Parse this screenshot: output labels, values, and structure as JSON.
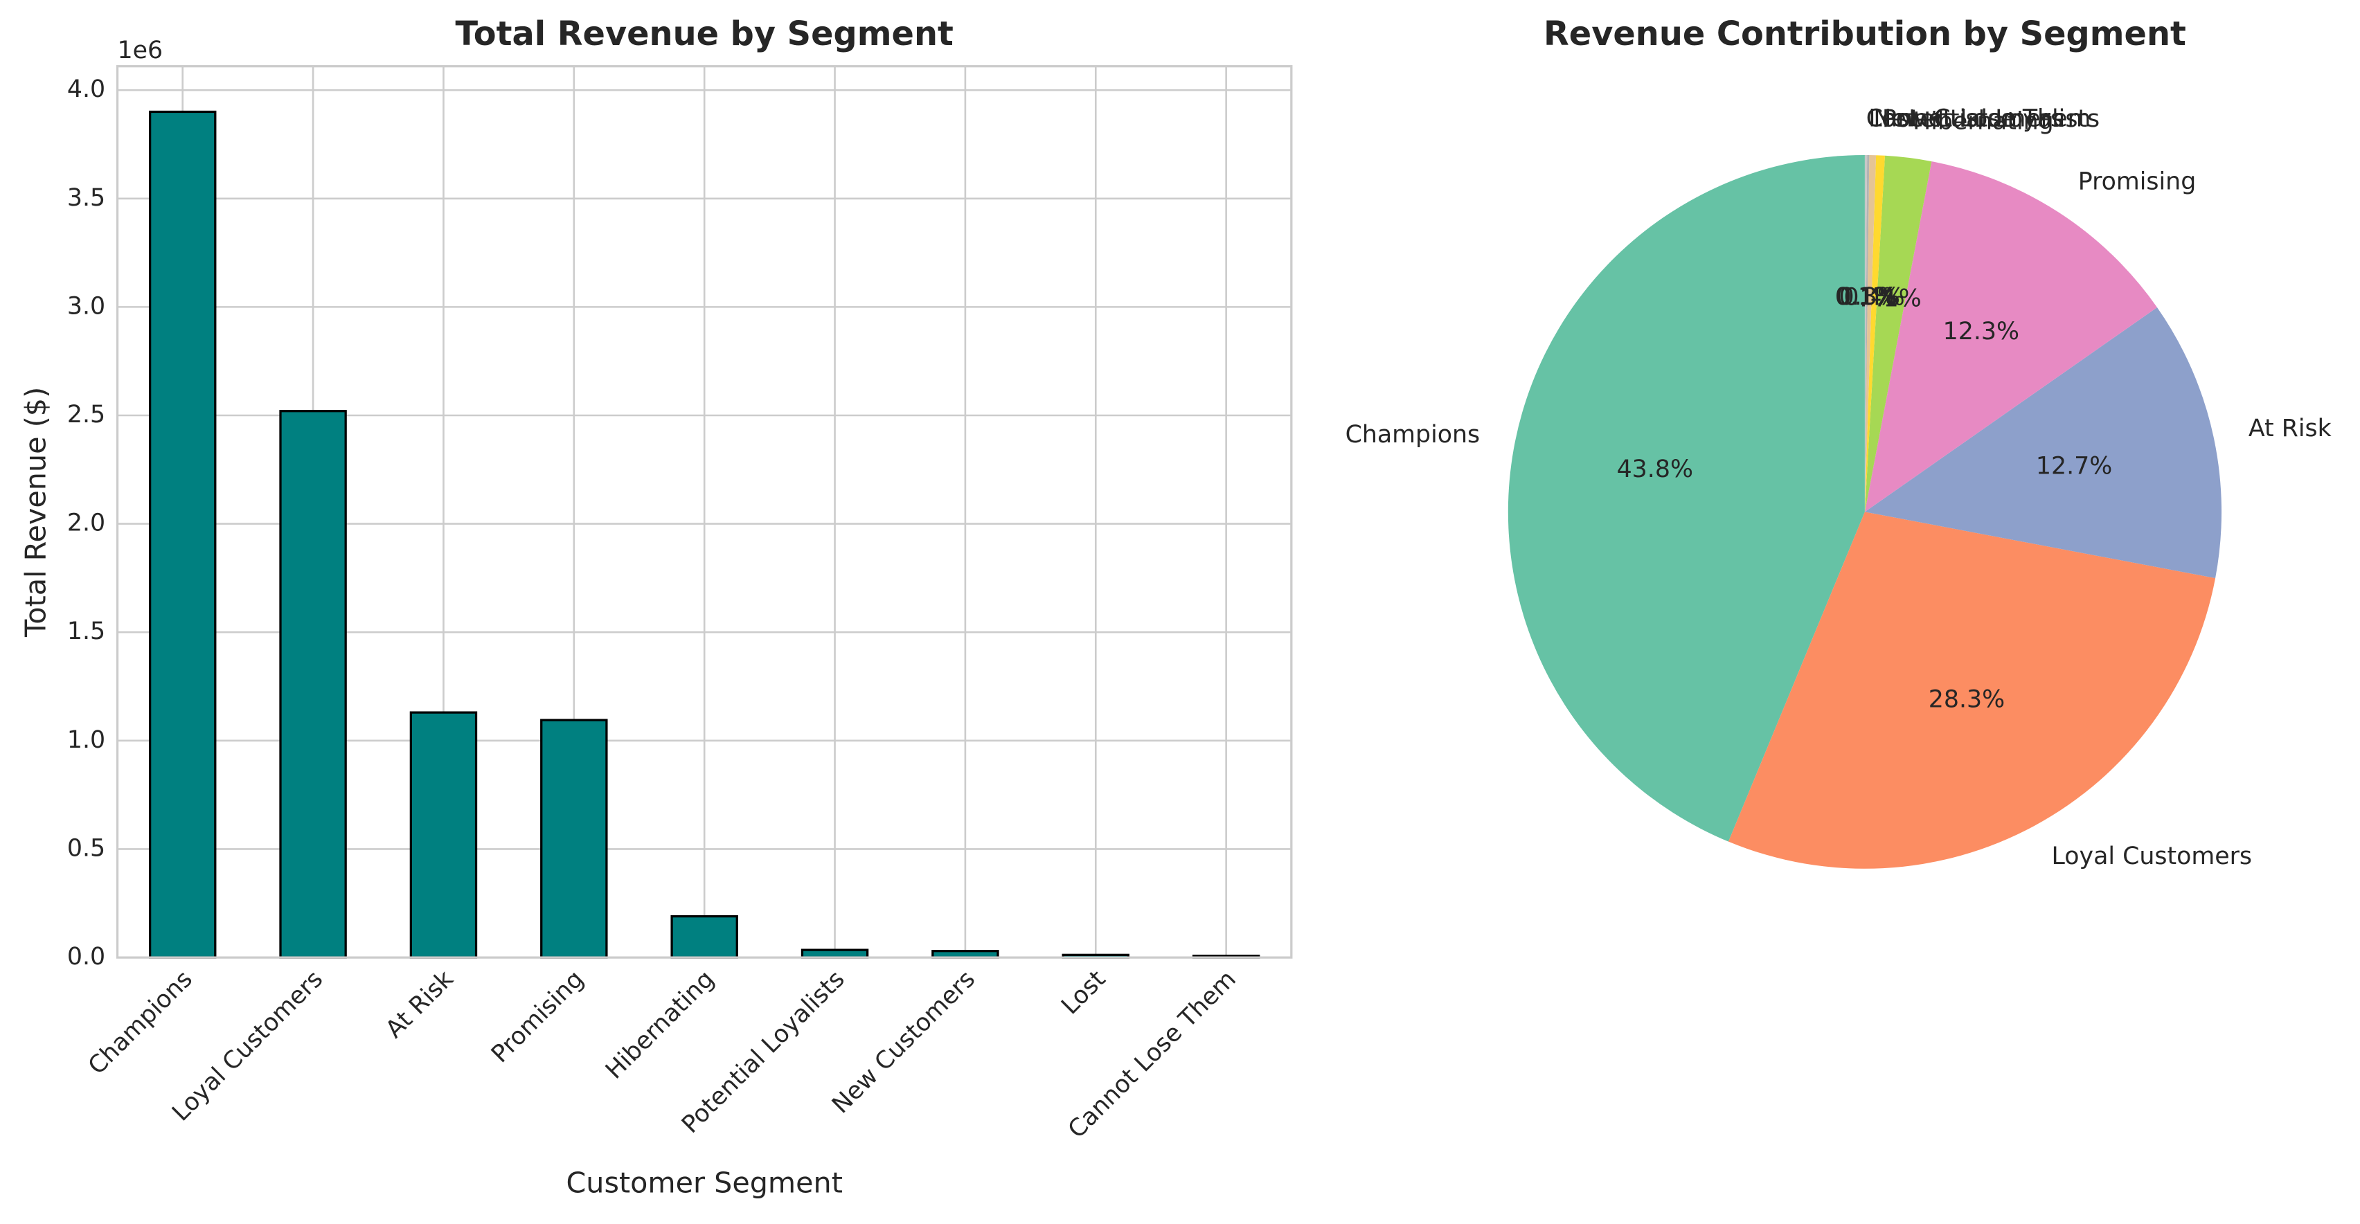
{
  "chart_data": [
    {
      "type": "bar",
      "title": "Total Revenue by Segment",
      "xlabel": "Customer Segment",
      "ylabel": "Total Revenue ($)",
      "offset_text": "1e6",
      "categories": [
        "Champions",
        "Loyal Customers",
        "At Risk",
        "Promising",
        "Hibernating",
        "Potential Loyalists",
        "New Customers",
        "Lost",
        "Cannot Lose Them"
      ],
      "values": [
        3.9,
        2.52,
        1.13,
        1.095,
        0.19,
        0.035,
        0.03,
        0.012,
        0.008
      ],
      "color": "#008080",
      "edgecolor": "#000000",
      "ylim": [
        0,
        4.11
      ],
      "yticks": [
        {
          "value": 0,
          "label": "0.0"
        },
        0.5,
        {
          "value": 1,
          "label": "1.0"
        },
        1.5,
        {
          "value": 2,
          "label": "2.0"
        },
        2.5,
        {
          "value": 3,
          "label": "3.0"
        },
        3.5,
        {
          "value": 4,
          "label": "4.0"
        }
      ],
      "grid": true
    },
    {
      "type": "pie",
      "title": "Revenue Contribution by Segment",
      "categories": [
        "Champions",
        "Loyal Customers",
        "At Risk",
        "Promising",
        "Hibernating",
        "Potential Loyalists",
        "New Customers",
        "Lost",
        "Cannot Lose Them"
      ],
      "values": [
        43.8,
        28.3,
        12.7,
        12.3,
        2.1,
        0.4,
        0.3,
        0.1,
        0.1
      ],
      "value_labels": [
        "43.8%",
        "28.3%",
        "12.7%",
        "12.3%",
        "2.1%",
        "0.4%",
        "0.3%",
        "0.1%",
        "0.1%"
      ],
      "colors": [
        "#66c2a5",
        "#fc8d62",
        "#8da0cb",
        "#e78ac3",
        "#a6d854",
        "#ffd92f",
        "#e5c494",
        "#b3b3b3",
        "#c7c7c7"
      ],
      "startangle": 90
    }
  ]
}
